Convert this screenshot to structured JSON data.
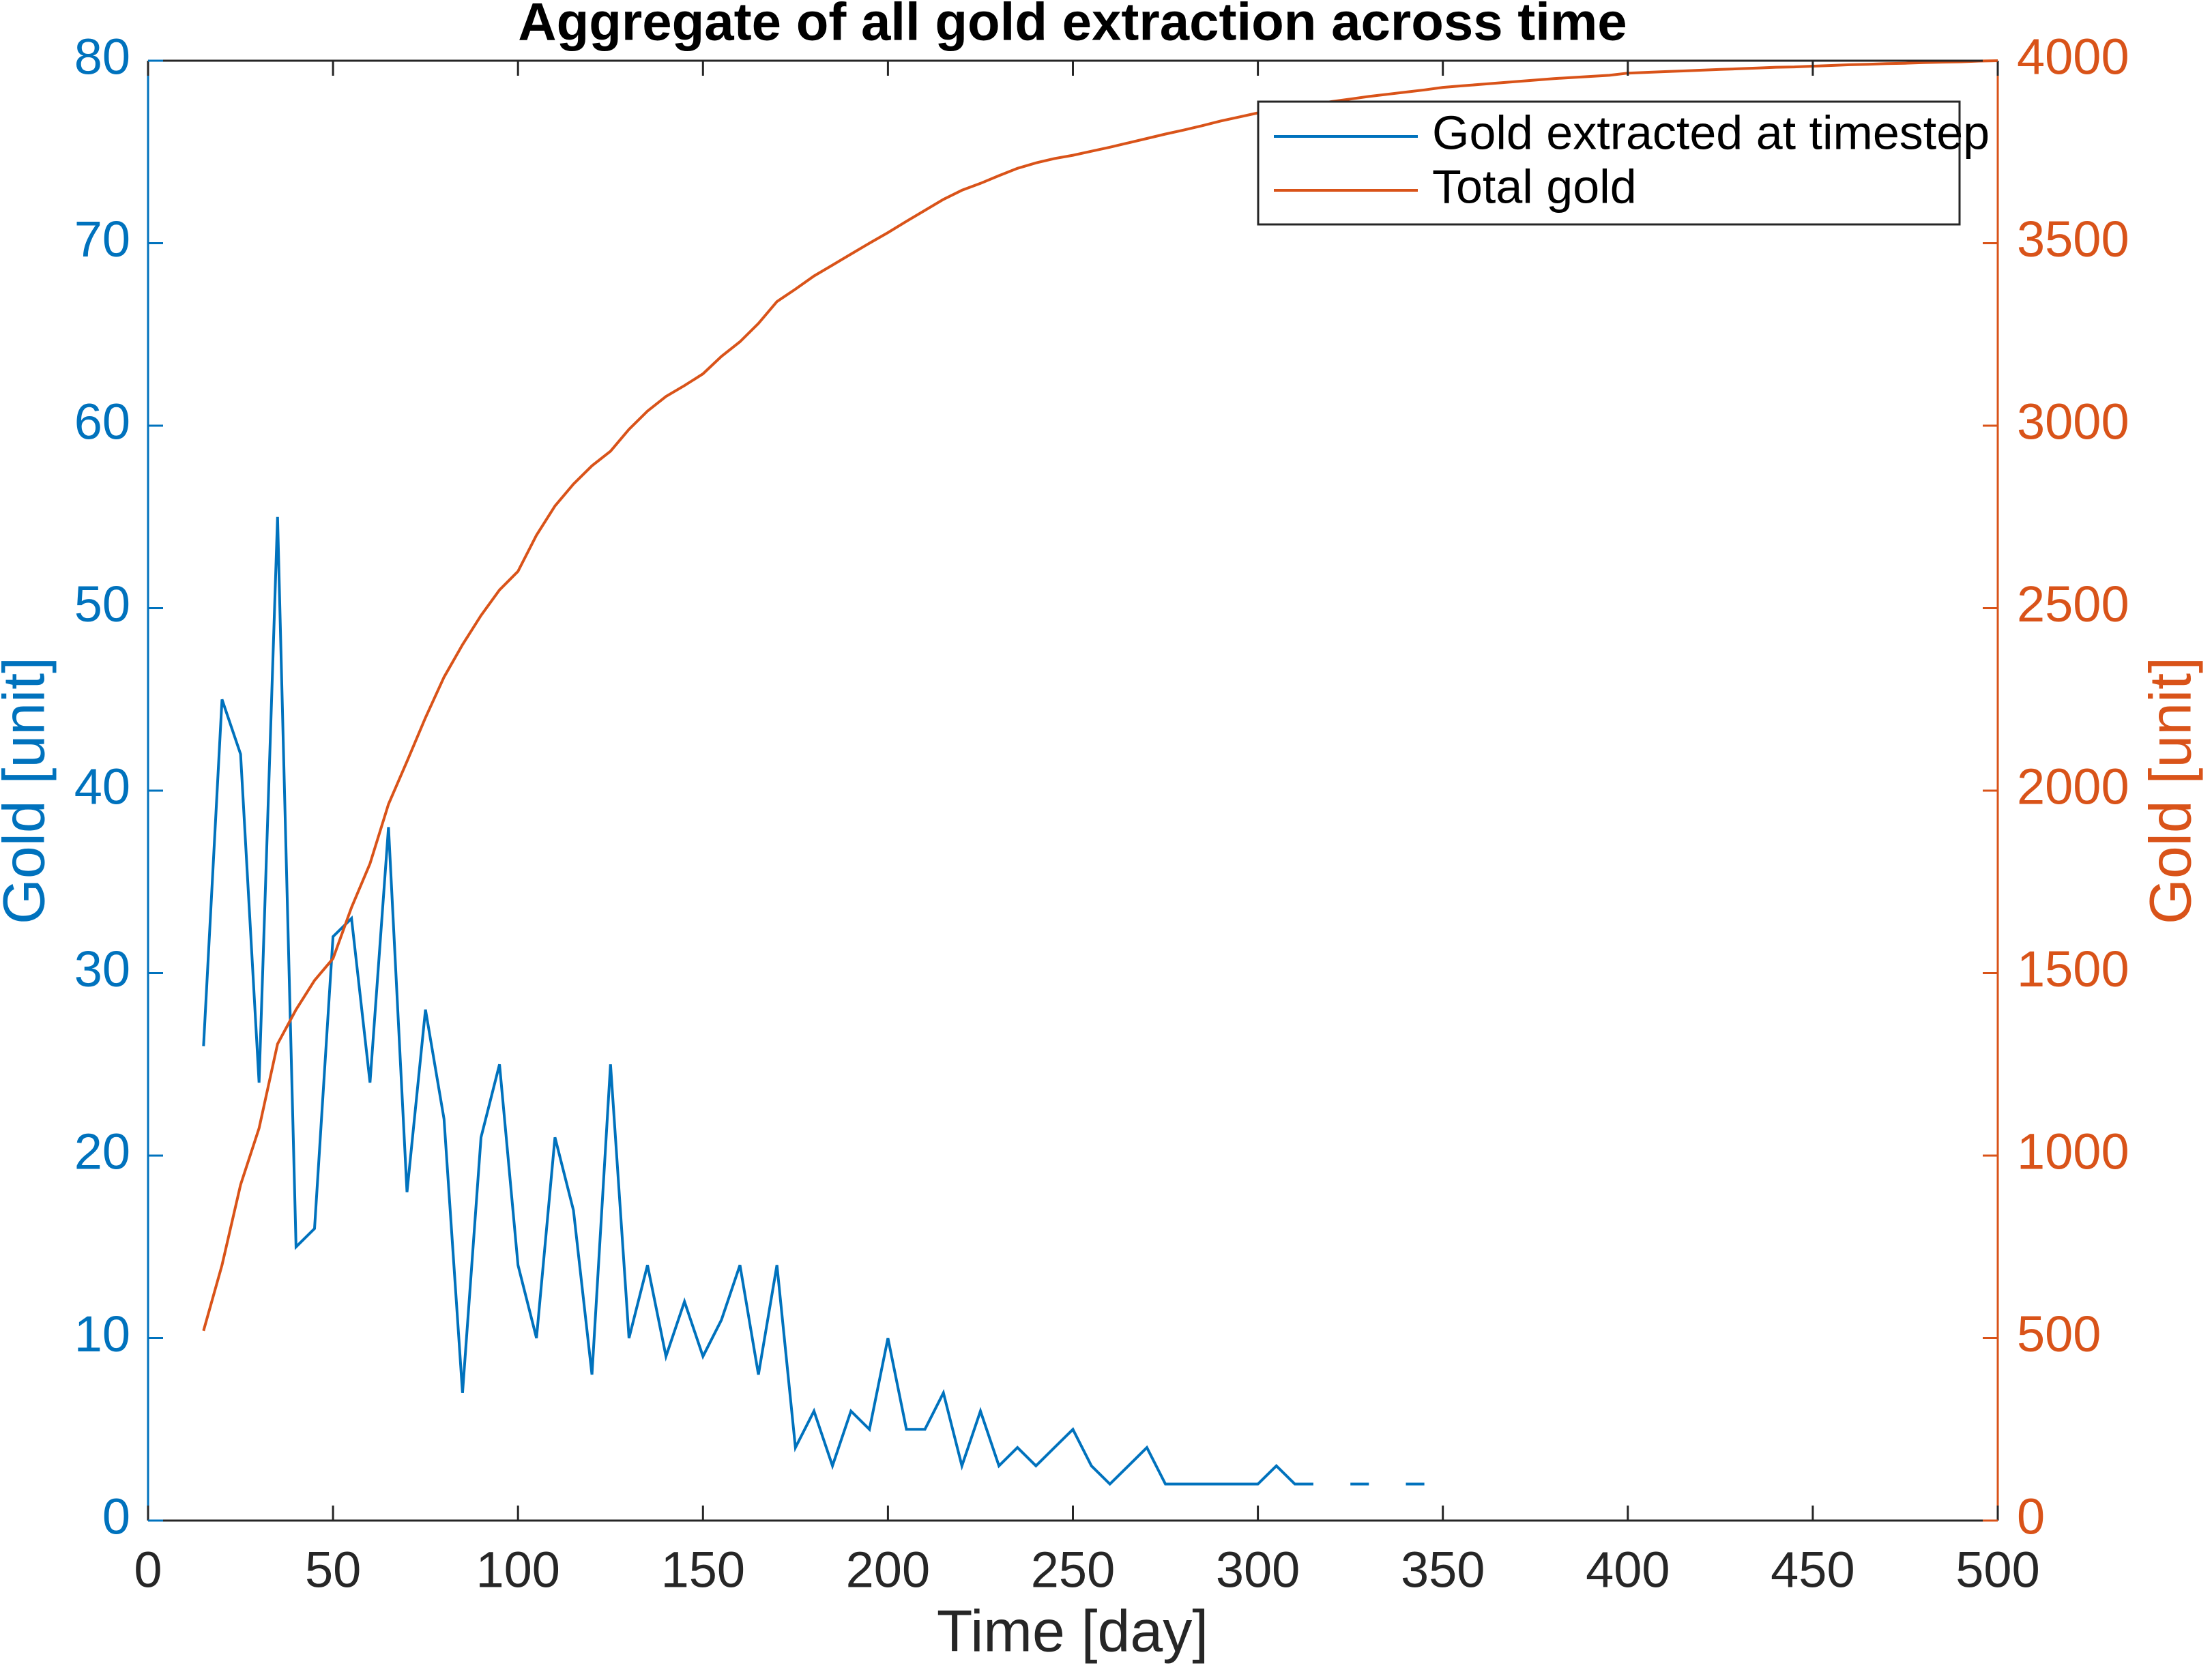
{
  "chart_data": {
    "type": "line",
    "title": "Aggregate of all gold extraction across time",
    "x_label": "Time [day]",
    "y_label": "Gold [unit]",
    "y2_label": "Gold [unit]",
    "xlim": [
      0,
      500
    ],
    "xticks": [
      0,
      50,
      100,
      150,
      200,
      250,
      300,
      350,
      400,
      450,
      500
    ],
    "ylim": [
      0,
      80
    ],
    "yticks": [
      0,
      10,
      20,
      30,
      40,
      50,
      60,
      70,
      80
    ],
    "y2lim": [
      0,
      4000
    ],
    "y2ticks": [
      0,
      500,
      1000,
      1500,
      2000,
      2500,
      3000,
      3500,
      4000
    ],
    "y_color": "#0072BD",
    "y2_color": "#D95319",
    "legend": "upper right",
    "x": [
      15,
      20,
      25,
      30,
      35,
      40,
      45,
      50,
      55,
      60,
      65,
      70,
      75,
      80,
      85,
      90,
      95,
      100,
      105,
      110,
      115,
      120,
      125,
      130,
      135,
      140,
      145,
      150,
      155,
      160,
      165,
      170,
      175,
      180,
      185,
      190,
      195,
      200,
      205,
      210,
      215,
      220,
      225,
      230,
      235,
      240,
      245,
      250,
      255,
      260,
      265,
      270,
      275,
      280,
      285,
      290,
      295,
      300,
      305,
      310,
      315,
      320,
      325,
      330,
      335,
      340,
      345,
      350,
      355,
      360,
      365,
      370,
      375,
      380,
      385,
      390,
      395,
      400,
      405,
      410,
      415,
      420,
      425,
      430,
      435,
      440,
      445,
      450,
      455,
      460,
      465,
      470,
      475,
      480,
      485,
      490,
      495,
      500
    ],
    "series": [
      {
        "name": "Gold extracted at timestep",
        "color": "#0072BD",
        "values": [
          26,
          45,
          42,
          24,
          55,
          15,
          16,
          32,
          33,
          24,
          38,
          18,
          28,
          22,
          7,
          21,
          25,
          14,
          10,
          21,
          17,
          8,
          25,
          10,
          14,
          9,
          12,
          9,
          11,
          14,
          8,
          14,
          4,
          6,
          3,
          6,
          5,
          10,
          5,
          5,
          7,
          3,
          6,
          3,
          4,
          3,
          4,
          5,
          3,
          2,
          3,
          4,
          2,
          2,
          2,
          2,
          2,
          2,
          3,
          2,
          2,
          null,
          2,
          2,
          null,
          2,
          2,
          null,
          null,
          null,
          null,
          null,
          null,
          null,
          null,
          null,
          null,
          null,
          null,
          null,
          null,
          null,
          null,
          null,
          null,
          null,
          null,
          null,
          null,
          null,
          null,
          null,
          null,
          null,
          null,
          null,
          null,
          null
        ]
      },
      {
        "name": "Total gold",
        "color": "#D95319",
        "axis": "y2",
        "values": [
          520,
          700,
          920,
          1075,
          1306,
          1400,
          1480,
          1540,
          1680,
          1800,
          1963,
          2080,
          2200,
          2311,
          2400,
          2480,
          2550,
          2601,
          2700,
          2780,
          2840,
          2890,
          2930,
          2990,
          3040,
          3080,
          3110,
          3142,
          3190,
          3230,
          3280,
          3340,
          3374,
          3410,
          3440,
          3470,
          3500,
          3529,
          3560,
          3590,
          3620,
          3645,
          3664,
          3685,
          3705,
          3720,
          3732,
          3741,
          3752,
          3763,
          3775,
          3787,
          3799,
          3810,
          3822,
          3835,
          3846,
          3857,
          3865,
          3873,
          3880,
          3888,
          3895,
          3902,
          3908,
          3914,
          3920,
          3927,
          3931,
          3935,
          3939,
          3943,
          3947,
          3951,
          3954,
          3957,
          3960,
          3966,
          3968,
          3970,
          3972,
          3974,
          3976,
          3978,
          3980,
          3982,
          3983,
          3985,
          3987,
          3989,
          3990,
          3992,
          3993,
          3995,
          3996,
          3997,
          3999,
          4000
        ]
      }
    ]
  }
}
